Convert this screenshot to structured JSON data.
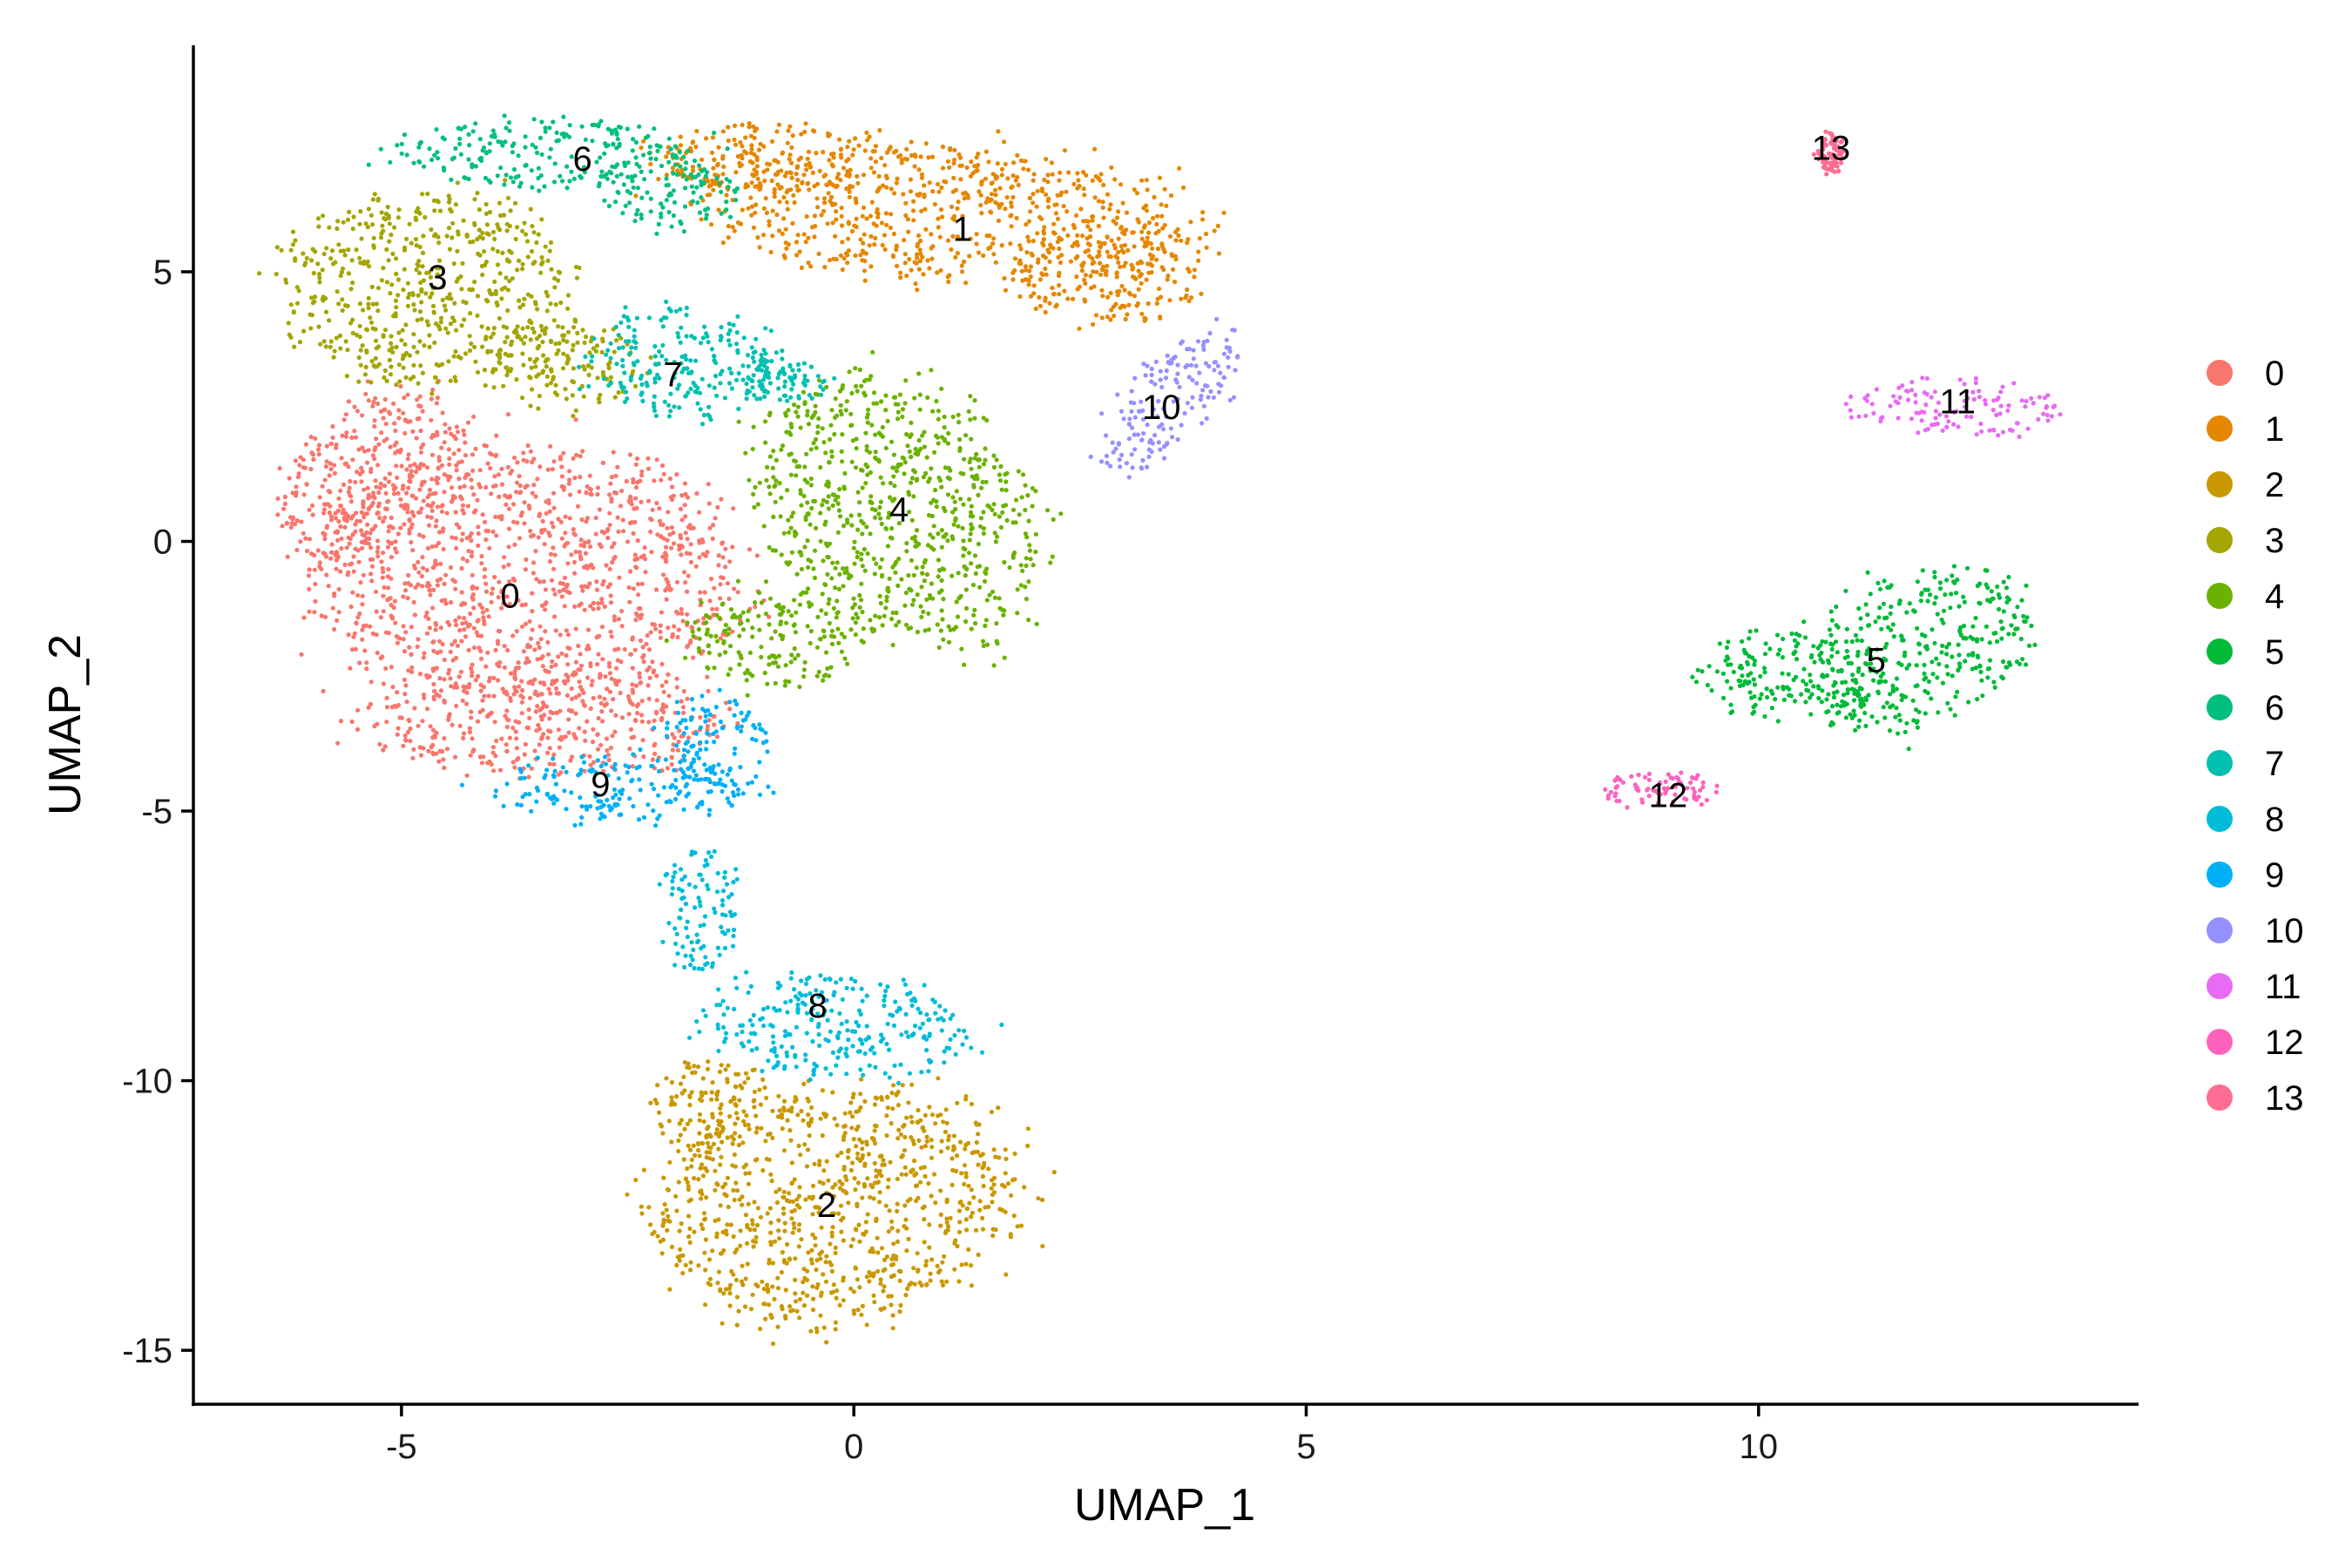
{
  "chart_data": {
    "type": "scatter",
    "title": "",
    "xlabel": "UMAP_1",
    "ylabel": "UMAP_2",
    "xlim": [
      -7.3,
      14.2
    ],
    "ylim": [
      -16.0,
      9.2
    ],
    "x_ticks": [
      {
        "value": -5,
        "label": "-5"
      },
      {
        "value": 0,
        "label": "0"
      },
      {
        "value": 5,
        "label": "5"
      },
      {
        "value": 10,
        "label": "10"
      }
    ],
    "y_ticks": [
      {
        "value": 5,
        "label": "5"
      },
      {
        "value": 0,
        "label": "0"
      },
      {
        "value": -5,
        "label": "-5"
      },
      {
        "value": -10,
        "label": "-10"
      },
      {
        "value": -15,
        "label": "-15"
      }
    ],
    "grid": false,
    "legend_position": "right",
    "clusters": [
      {
        "id": "0",
        "label": "0",
        "color": "#F8766D",
        "center": [
          -3.8,
          -1.0
        ],
        "regions": [
          [
            -3.6,
            -0.6,
            2.3,
            2.3,
            10
          ],
          [
            -5.3,
            1.2,
            0.9,
            1.6,
            -20
          ],
          [
            -3.4,
            -3.4,
            1.9,
            0.9,
            0
          ]
        ]
      },
      {
        "id": "1",
        "label": "1",
        "color": "#E58700",
        "center": [
          1.2,
          5.8
        ],
        "regions": [
          [
            1.0,
            6.1,
            2.7,
            1.2,
            -8
          ],
          [
            -0.9,
            7.1,
            1.3,
            0.6,
            0
          ],
          [
            2.8,
            4.9,
            1.0,
            0.8,
            0
          ]
        ]
      },
      {
        "id": "2",
        "label": "2",
        "color": "#C99800",
        "center": [
          -0.3,
          -12.3
        ],
        "regions": [
          [
            -0.2,
            -12.3,
            1.9,
            2.1,
            -25
          ],
          [
            -1.6,
            -10.5,
            0.7,
            0.8,
            0
          ]
        ]
      },
      {
        "id": "3",
        "label": "3",
        "color": "#A3A500",
        "center": [
          -4.6,
          4.9
        ],
        "regions": [
          [
            -4.7,
            4.7,
            1.5,
            1.7,
            0
          ],
          [
            -3.2,
            3.3,
            0.8,
            0.8,
            0
          ]
        ]
      },
      {
        "id": "4",
        "label": "4",
        "color": "#6BB100",
        "center": [
          0.5,
          0.6
        ],
        "regions": [
          [
            0.5,
            0.6,
            1.4,
            2.4,
            15
          ],
          [
            -0.9,
            -1.8,
            0.9,
            0.9,
            0
          ]
        ]
      },
      {
        "id": "5",
        "label": "5",
        "color": "#00BA38",
        "center": [
          11.3,
          -2.2
        ],
        "regions": [
          [
            11.8,
            -2.0,
            1.1,
            1.5,
            -30
          ],
          [
            10.3,
            -2.5,
            0.9,
            0.8,
            0
          ]
        ]
      },
      {
        "id": "6",
        "label": "6",
        "color": "#00BF7D",
        "center": [
          -3.0,
          7.1
        ],
        "regions": [
          [
            -3.3,
            7.2,
            1.7,
            0.6,
            0
          ],
          [
            -2.0,
            6.4,
            0.7,
            0.6,
            0
          ]
        ]
      },
      {
        "id": "7",
        "label": "7",
        "color": "#00C0AF",
        "center": [
          -2.0,
          3.1
        ],
        "regions": [
          [
            -1.9,
            3.3,
            1.0,
            1.0,
            0
          ],
          [
            -0.8,
            3.0,
            0.5,
            0.4,
            0
          ]
        ]
      },
      {
        "id": "8",
        "label": "8",
        "color": "#00BCD8",
        "center": [
          -0.4,
          -8.6
        ],
        "regions": [
          [
            -0.2,
            -9.0,
            1.4,
            0.9,
            -10
          ],
          [
            -1.7,
            -6.8,
            0.4,
            1.2,
            0
          ]
        ]
      },
      {
        "id": "9",
        "label": "9",
        "color": "#00B0F6",
        "center": [
          -2.8,
          -4.5
        ],
        "regions": [
          [
            -2.6,
            -4.6,
            1.4,
            0.6,
            0
          ],
          [
            -1.5,
            -3.7,
            0.6,
            0.8,
            0
          ]
        ]
      },
      {
        "id": "10",
        "label": "10",
        "color": "#9590FF",
        "center": [
          3.4,
          2.5
        ],
        "regions": [
          [
            3.5,
            2.6,
            0.5,
            1.5,
            -25
          ]
        ]
      },
      {
        "id": "11",
        "label": "11",
        "color": "#E76BF3",
        "center": [
          12.2,
          2.6
        ],
        "regions": [
          [
            12.2,
            2.5,
            1.1,
            0.5,
            -5
          ]
        ]
      },
      {
        "id": "12",
        "label": "12",
        "color": "#FF62BC",
        "center": [
          9.0,
          -4.7
        ],
        "regions": [
          [
            8.9,
            -4.6,
            0.6,
            0.3,
            0
          ]
        ]
      },
      {
        "id": "13",
        "label": "13",
        "color": "#FF6C91",
        "center": [
          10.8,
          7.3
        ],
        "regions": [
          [
            10.8,
            7.2,
            0.15,
            0.35,
            0
          ]
        ]
      }
    ]
  }
}
